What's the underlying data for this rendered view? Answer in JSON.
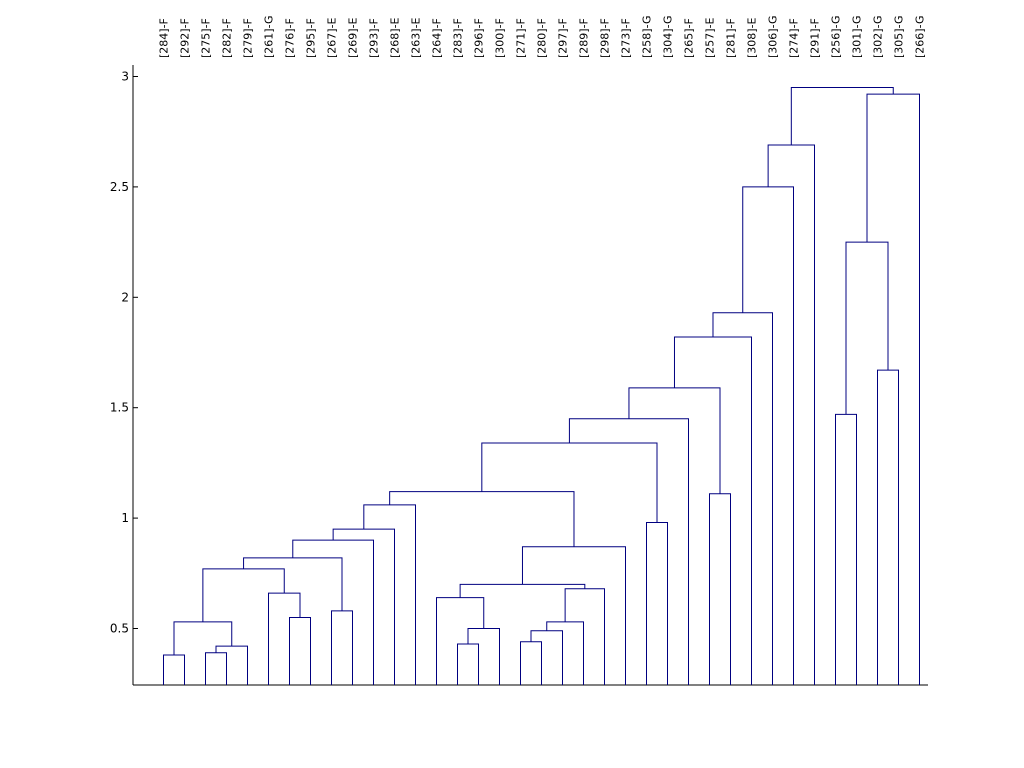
{
  "chart_data": {
    "type": "dendrogram",
    "ylim": [
      0.25,
      3.15
    ],
    "yticks": [
      0.5,
      1,
      1.5,
      2,
      2.5,
      3
    ],
    "ytick_labels": [
      "0.5",
      "1",
      "1.5",
      "2",
      "2.5",
      "3"
    ],
    "line_color": "#000080",
    "leaves": [
      "[284]-F",
      "[292]-F",
      "[275]-F",
      "[282]-F",
      "[279]-F",
      "[261]-G",
      "[276]-F",
      "[295]-F",
      "[267]-E",
      "[269]-E",
      "[293]-F",
      "[268]-E",
      "[263]-E",
      "[264]-F",
      "[283]-F",
      "[296]-F",
      "[300]-F",
      "[271]-F",
      "[280]-F",
      "[297]-F",
      "[289]-F",
      "[298]-F",
      "[273]-F",
      "[258]-G",
      "[304]-G",
      "[265]-F",
      "[257]-E",
      "[281]-F",
      "[308]-E",
      "[306]-G",
      "[274]-F",
      "[291]-F",
      "[256]-G",
      "[301]-G",
      "[302]-G",
      "[305]-G",
      "[266]-G"
    ],
    "merges": [
      [
        "[284]-F",
        "[292]-F",
        0.38
      ],
      [
        "[275]-F",
        "[282]-F",
        0.39
      ],
      [
        "m2",
        "[279]-F",
        0.42
      ],
      [
        "m1",
        "m3",
        0.53
      ],
      [
        "[276]-F",
        "[295]-F",
        0.55
      ],
      [
        "[261]-G",
        "m5",
        0.66
      ],
      [
        "m4",
        "m6",
        0.77
      ],
      [
        "[267]-E",
        "[269]-E",
        0.58
      ],
      [
        "m7",
        "m8",
        0.82
      ],
      [
        "m9",
        "[293]-F",
        0.9
      ],
      [
        "m10",
        "[268]-E",
        0.95
      ],
      [
        "m11",
        "[263]-E",
        1.06
      ],
      [
        "[283]-F",
        "[296]-F",
        0.43
      ],
      [
        "m13",
        "[300]-F",
        0.5
      ],
      [
        "[264]-F",
        "m14",
        0.64
      ],
      [
        "[271]-F",
        "[280]-F",
        0.44
      ],
      [
        "m16",
        "[297]-F",
        0.49
      ],
      [
        "m17",
        "[289]-F",
        0.53
      ],
      [
        "m18",
        "[298]-F",
        0.68
      ],
      [
        "m15",
        "m19",
        0.7
      ],
      [
        "m20",
        "[273]-F",
        0.87
      ],
      [
        "m12",
        "m21",
        1.12
      ],
      [
        "[258]-G",
        "[304]-G",
        0.98
      ],
      [
        "m22",
        "m23",
        1.34
      ],
      [
        "m24",
        "[265]-F",
        1.45
      ],
      [
        "[257]-E",
        "[281]-F",
        1.11
      ],
      [
        "m25",
        "m26",
        1.59
      ],
      [
        "m27",
        "[308]-E",
        1.82
      ],
      [
        "m28",
        "[306]-G",
        1.93
      ],
      [
        "m29",
        "[274]-F",
        2.5
      ],
      [
        "m30",
        "[291]-F",
        2.69
      ],
      [
        "[256]-G",
        "[301]-G",
        1.47
      ],
      [
        "[302]-G",
        "[305]-G",
        1.67
      ],
      [
        "m32",
        "m33",
        2.25
      ],
      [
        "m34",
        "[266]-G",
        2.92
      ],
      [
        "m31",
        "m35",
        2.95
      ]
    ]
  }
}
